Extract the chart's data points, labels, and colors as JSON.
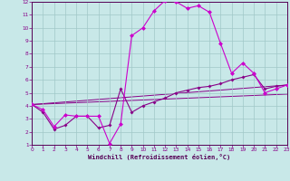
{
  "bg_color": "#c8e8e8",
  "grid_color": "#a0c8c8",
  "line_color": "#880088",
  "line_color2": "#cc00cc",
  "xlabel": "Windchill (Refroidissement éolien,°C)",
  "xlim": [
    0,
    23
  ],
  "ylim": [
    1,
    12
  ],
  "xticks": [
    0,
    1,
    2,
    3,
    4,
    5,
    6,
    7,
    8,
    9,
    10,
    11,
    12,
    13,
    14,
    15,
    16,
    17,
    18,
    19,
    20,
    21,
    22,
    23
  ],
  "yticks": [
    1,
    2,
    3,
    4,
    5,
    6,
    7,
    8,
    9,
    10,
    11,
    12
  ],
  "line1_x": [
    0,
    1,
    2,
    3,
    4,
    5,
    6,
    7,
    8,
    9,
    10,
    11,
    12,
    13,
    14,
    15,
    16,
    17,
    18,
    19,
    20,
    21,
    22,
    23
  ],
  "line1_y": [
    4.1,
    3.7,
    2.4,
    3.3,
    3.2,
    3.2,
    3.2,
    1.1,
    2.6,
    9.4,
    10.0,
    11.3,
    12.1,
    12.0,
    11.5,
    11.7,
    11.2,
    8.8,
    6.5,
    7.3,
    6.5,
    5.0,
    5.3,
    5.6
  ],
  "line2_x": [
    0,
    1,
    2,
    3,
    4,
    5,
    6,
    7,
    8,
    9,
    10,
    11,
    12,
    13,
    14,
    15,
    16,
    17,
    18,
    19,
    20,
    21,
    22,
    23
  ],
  "line2_y": [
    4.1,
    3.5,
    2.2,
    2.5,
    3.2,
    3.2,
    2.3,
    2.5,
    5.3,
    3.5,
    4.0,
    4.3,
    4.6,
    5.0,
    5.2,
    5.4,
    5.5,
    5.7,
    6.0,
    6.2,
    6.4,
    5.3,
    5.5,
    5.6
  ],
  "line3_x": [
    0,
    23
  ],
  "line3_y": [
    4.1,
    5.6
  ],
  "line4_x": [
    0,
    23
  ],
  "line4_y": [
    4.1,
    4.9
  ],
  "spine_color": "#550055",
  "tick_label_color": "#880088",
  "xlabel_color": "#550055",
  "marker_size1": 2.5,
  "marker_size2": 2.0
}
